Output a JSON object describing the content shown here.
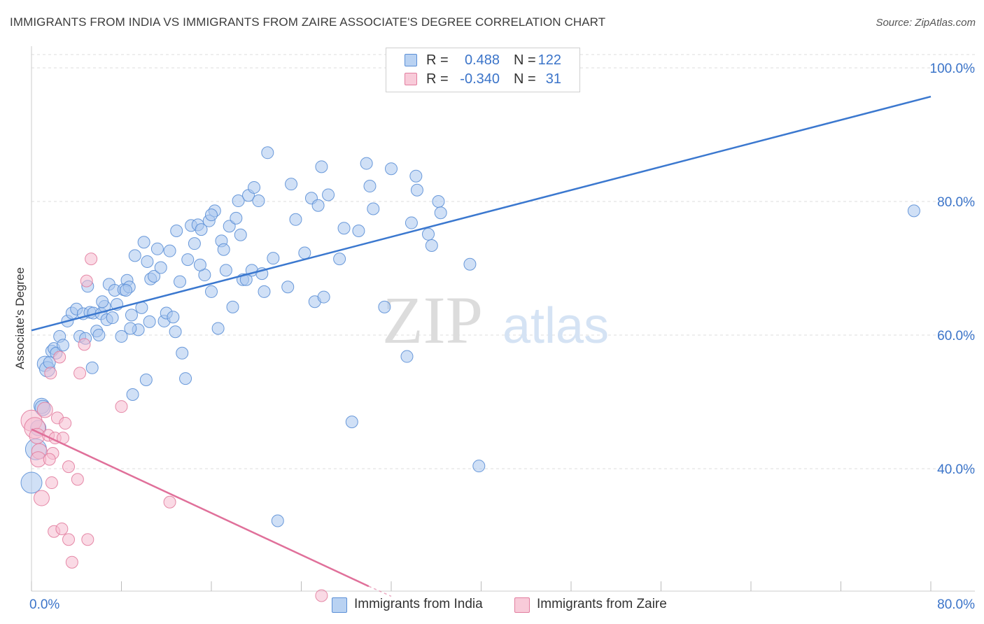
{
  "header": {
    "title": "IMMIGRANTS FROM INDIA VS IMMIGRANTS FROM ZAIRE ASSOCIATE'S DEGREE CORRELATION CHART",
    "source": "Source: ZipAtlas.com"
  },
  "watermark": {
    "zip": "ZIP",
    "atlas": "atlas"
  },
  "legend": {
    "india": {
      "r_label": "R =",
      "r_value": "0.488",
      "n_label": "N =",
      "n_value": "122"
    },
    "zaire": {
      "r_label": "R =",
      "r_value": "-0.340",
      "n_label": "N =",
      "n_value": "31"
    }
  },
  "colors": {
    "india_fill": "#a9c6ee",
    "india_stroke": "#5b8fd6",
    "india_line": "#3b78cf",
    "zaire_fill": "#f6bccf",
    "zaire_stroke": "#e27d9f",
    "zaire_line": "#e0709a",
    "axis_label": "#3b74c9",
    "grid": "#dddddd"
  },
  "chart_data": {
    "type": "scatter",
    "title": "IMMIGRANTS FROM INDIA VS IMMIGRANTS FROM ZAIRE ASSOCIATE'S DEGREE CORRELATION CHART",
    "xlabel": "",
    "ylabel": "Associate's Degree",
    "xlim": [
      0,
      80
    ],
    "ylim": [
      20,
      102
    ],
    "x_tick_labels": [
      "0.0%",
      "80.0%"
    ],
    "y_ticks": [
      40,
      60,
      80,
      100
    ],
    "y_tick_labels": [
      "40.0%",
      "60.0%",
      "80.0%",
      "100.0%"
    ],
    "grid": true,
    "legend_position": "top-center",
    "series": [
      {
        "name": "Immigrants from India",
        "trendline": {
          "x": [
            0,
            80
          ],
          "y": [
            60.7,
            95.7
          ]
        },
        "points": [
          [
            0.0,
            37.9
          ],
          [
            0.4,
            42.9
          ],
          [
            0.6,
            46.1
          ],
          [
            0.9,
            49.4
          ],
          [
            1.0,
            49.1
          ],
          [
            1.2,
            55.7
          ],
          [
            1.4,
            54.9
          ],
          [
            1.6,
            55.9
          ],
          [
            1.8,
            57.6
          ],
          [
            2.0,
            58.0
          ],
          [
            2.2,
            57.3
          ],
          [
            2.5,
            59.8
          ],
          [
            2.8,
            58.5
          ],
          [
            3.2,
            62.1
          ],
          [
            3.6,
            63.3
          ],
          [
            4.0,
            63.9
          ],
          [
            4.3,
            59.8
          ],
          [
            4.6,
            63.2
          ],
          [
            4.8,
            59.5
          ],
          [
            5.0,
            67.3
          ],
          [
            5.2,
            63.4
          ],
          [
            5.5,
            63.3
          ],
          [
            5.4,
            55.1
          ],
          [
            5.8,
            60.6
          ],
          [
            6.0,
            60.0
          ],
          [
            6.2,
            63.2
          ],
          [
            6.5,
            64.3
          ],
          [
            6.7,
            62.3
          ],
          [
            6.9,
            67.6
          ],
          [
            7.2,
            62.6
          ],
          [
            7.4,
            66.7
          ],
          [
            7.6,
            64.6
          ],
          [
            8.0,
            59.8
          ],
          [
            8.2,
            66.8
          ],
          [
            8.5,
            68.2
          ],
          [
            8.7,
            67.2
          ],
          [
            8.4,
            66.7
          ],
          [
            8.9,
            63.0
          ],
          [
            9.2,
            71.9
          ],
          [
            9.5,
            60.8
          ],
          [
            9.0,
            51.1
          ],
          [
            9.8,
            64.1
          ],
          [
            10.0,
            73.9
          ],
          [
            10.3,
            71.0
          ],
          [
            10.2,
            53.3
          ],
          [
            10.6,
            68.4
          ],
          [
            10.9,
            68.8
          ],
          [
            11.2,
            72.9
          ],
          [
            11.5,
            70.1
          ],
          [
            11.8,
            62.1
          ],
          [
            12.0,
            63.3
          ],
          [
            12.3,
            72.6
          ],
          [
            12.6,
            62.7
          ],
          [
            12.9,
            75.6
          ],
          [
            13.2,
            68.0
          ],
          [
            13.4,
            57.3
          ],
          [
            13.7,
            53.5
          ],
          [
            13.9,
            71.3
          ],
          [
            14.2,
            76.4
          ],
          [
            14.5,
            73.7
          ],
          [
            14.8,
            76.5
          ],
          [
            15.1,
            75.8
          ],
          [
            15.4,
            69.0
          ],
          [
            15.8,
            77.1
          ],
          [
            16.0,
            66.5
          ],
          [
            16.3,
            78.6
          ],
          [
            16.0,
            78.0
          ],
          [
            16.6,
            61.0
          ],
          [
            16.9,
            74.1
          ],
          [
            17.1,
            72.8
          ],
          [
            17.3,
            69.7
          ],
          [
            17.6,
            76.3
          ],
          [
            17.9,
            64.2
          ],
          [
            18.2,
            77.5
          ],
          [
            18.4,
            80.1
          ],
          [
            18.6,
            75.0
          ],
          [
            18.8,
            68.3
          ],
          [
            19.1,
            68.3
          ],
          [
            19.3,
            80.9
          ],
          [
            19.6,
            69.7
          ],
          [
            19.8,
            82.1
          ],
          [
            20.2,
            80.1
          ],
          [
            20.5,
            69.2
          ],
          [
            20.7,
            66.5
          ],
          [
            21.0,
            87.3
          ],
          [
            21.5,
            71.5
          ],
          [
            21.9,
            32.2
          ],
          [
            22.8,
            67.2
          ],
          [
            23.1,
            82.6
          ],
          [
            23.5,
            77.3
          ],
          [
            24.3,
            72.3
          ],
          [
            24.9,
            80.5
          ],
          [
            25.2,
            65.0
          ],
          [
            25.5,
            79.4
          ],
          [
            25.8,
            85.2
          ],
          [
            26.0,
            65.7
          ],
          [
            26.4,
            81.0
          ],
          [
            27.4,
            71.4
          ],
          [
            27.8,
            76.0
          ],
          [
            28.5,
            47.0
          ],
          [
            29.1,
            75.6
          ],
          [
            29.8,
            85.7
          ],
          [
            30.1,
            82.3
          ],
          [
            30.4,
            78.9
          ],
          [
            31.4,
            64.2
          ],
          [
            32.0,
            84.9
          ],
          [
            33.4,
            56.8
          ],
          [
            33.8,
            76.8
          ],
          [
            34.2,
            83.8
          ],
          [
            34.3,
            81.7
          ],
          [
            35.3,
            75.1
          ],
          [
            35.6,
            73.4
          ],
          [
            36.2,
            80.0
          ],
          [
            36.4,
            78.3
          ],
          [
            39.0,
            70.6
          ],
          [
            39.8,
            40.4
          ],
          [
            78.5,
            78.6
          ],
          [
            10.5,
            62.0
          ],
          [
            12.8,
            60.5
          ],
          [
            6.3,
            65.0
          ],
          [
            8.8,
            61.0
          ],
          [
            15.0,
            70.5
          ]
        ]
      },
      {
        "name": "Immigrants from Zaire",
        "trendline": {
          "x": [
            0,
            30
          ],
          "y": [
            45.9,
            22.4
          ]
        },
        "trendline_dashed": {
          "x": [
            30,
            32
          ],
          "y": [
            22.4,
            20.9
          ]
        },
        "points": [
          [
            0.0,
            47.2
          ],
          [
            0.3,
            46.1
          ],
          [
            0.5,
            44.9
          ],
          [
            0.7,
            42.6
          ],
          [
            0.6,
            41.4
          ],
          [
            0.9,
            35.6
          ],
          [
            1.2,
            48.8
          ],
          [
            1.5,
            45.0
          ],
          [
            1.7,
            54.3
          ],
          [
            1.9,
            42.3
          ],
          [
            2.1,
            44.6
          ],
          [
            1.8,
            37.9
          ],
          [
            1.6,
            41.4
          ],
          [
            2.3,
            47.6
          ],
          [
            2.5,
            56.7
          ],
          [
            2.8,
            44.6
          ],
          [
            3.0,
            46.8
          ],
          [
            2.0,
            30.6
          ],
          [
            2.7,
            31.0
          ],
          [
            3.3,
            40.3
          ],
          [
            3.6,
            26.0
          ],
          [
            3.3,
            29.4
          ],
          [
            4.3,
            54.3
          ],
          [
            4.1,
            38.4
          ],
          [
            4.7,
            58.6
          ],
          [
            5.0,
            29.4
          ],
          [
            4.9,
            68.1
          ],
          [
            5.3,
            71.4
          ],
          [
            8.0,
            49.3
          ],
          [
            12.3,
            35.0
          ],
          [
            25.8,
            21.0
          ]
        ]
      }
    ]
  },
  "bottom_legend": {
    "india": "Immigrants from India",
    "zaire": "Immigrants from Zaire"
  }
}
